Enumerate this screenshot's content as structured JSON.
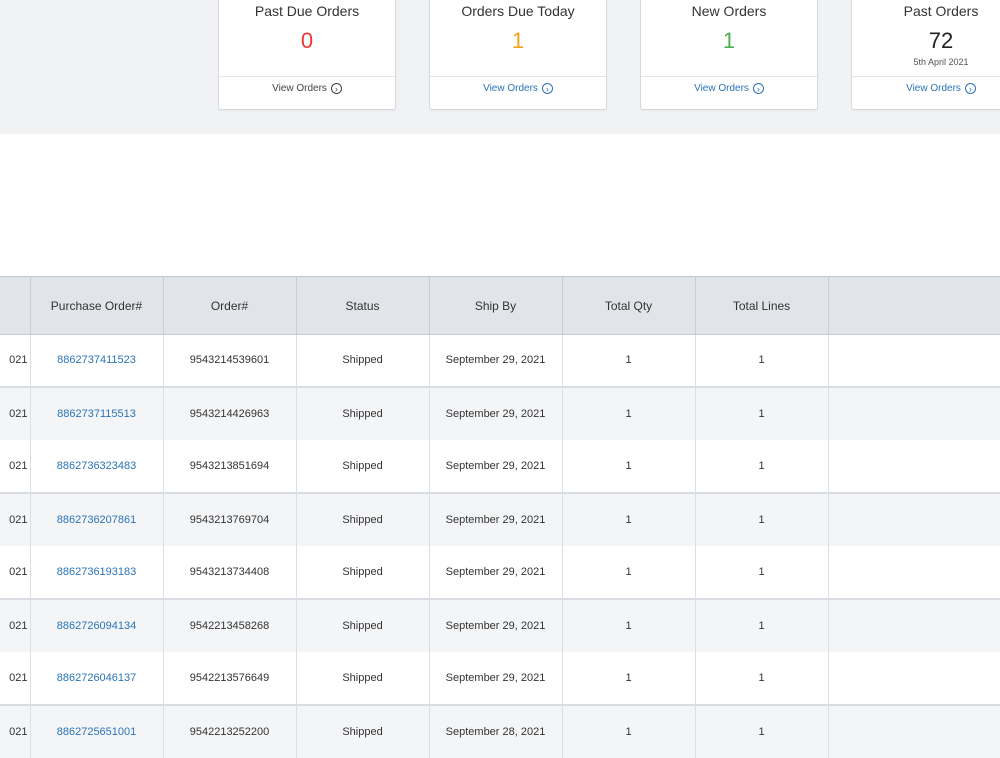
{
  "summary": {
    "cards": [
      {
        "title": "Past Due Orders",
        "value": "0",
        "sub": "",
        "link": "View Orders",
        "color": "#e53935",
        "link_color": "#444444"
      },
      {
        "title": "Orders Due Today",
        "value": "1",
        "sub": "",
        "link": "View Orders",
        "color": "#f0a41c",
        "link_color": "#2a74b8"
      },
      {
        "title": "New Orders",
        "value": "1",
        "sub": "",
        "link": "View Orders",
        "color": "#4caf50",
        "link_color": "#2a74b8"
      },
      {
        "title": "Past Orders",
        "value": "72",
        "sub": "5th April 2021",
        "link": "View Orders",
        "color": "#222222",
        "link_color": "#2a74b8"
      }
    ]
  },
  "table": {
    "headers": [
      "",
      "Purchase Order#",
      "Order#",
      "Status",
      "Ship By",
      "Total Qty",
      "Total Lines",
      ""
    ],
    "rows": [
      {
        "date_clip": "021",
        "po": "8862737411523",
        "order": "9543214539601",
        "status": "Shipped",
        "ship_by": "September 29, 2021",
        "qty": "1",
        "lines": "1"
      },
      {
        "date_clip": "021",
        "po": "8862737115513",
        "order": "9543214426963",
        "status": "Shipped",
        "ship_by": "September 29, 2021",
        "qty": "1",
        "lines": "1"
      },
      {
        "date_clip": "021",
        "po": "8862736323483",
        "order": "9543213851694",
        "status": "Shipped",
        "ship_by": "September 29, 2021",
        "qty": "1",
        "lines": "1"
      },
      {
        "date_clip": "021",
        "po": "8862736207861",
        "order": "9543213769704",
        "status": "Shipped",
        "ship_by": "September 29, 2021",
        "qty": "1",
        "lines": "1"
      },
      {
        "date_clip": "021",
        "po": "8862736193183",
        "order": "9543213734408",
        "status": "Shipped",
        "ship_by": "September 29, 2021",
        "qty": "1",
        "lines": "1"
      },
      {
        "date_clip": "021",
        "po": "8862726094134",
        "order": "9542213458268",
        "status": "Shipped",
        "ship_by": "September 29, 2021",
        "qty": "1",
        "lines": "1"
      },
      {
        "date_clip": "021",
        "po": "8862726046137",
        "order": "9542213576649",
        "status": "Shipped",
        "ship_by": "September 29, 2021",
        "qty": "1",
        "lines": "1"
      },
      {
        "date_clip": "021",
        "po": "8862725651001",
        "order": "9542213252200",
        "status": "Shipped",
        "ship_by": "September 28, 2021",
        "qty": "1",
        "lines": "1"
      }
    ]
  }
}
